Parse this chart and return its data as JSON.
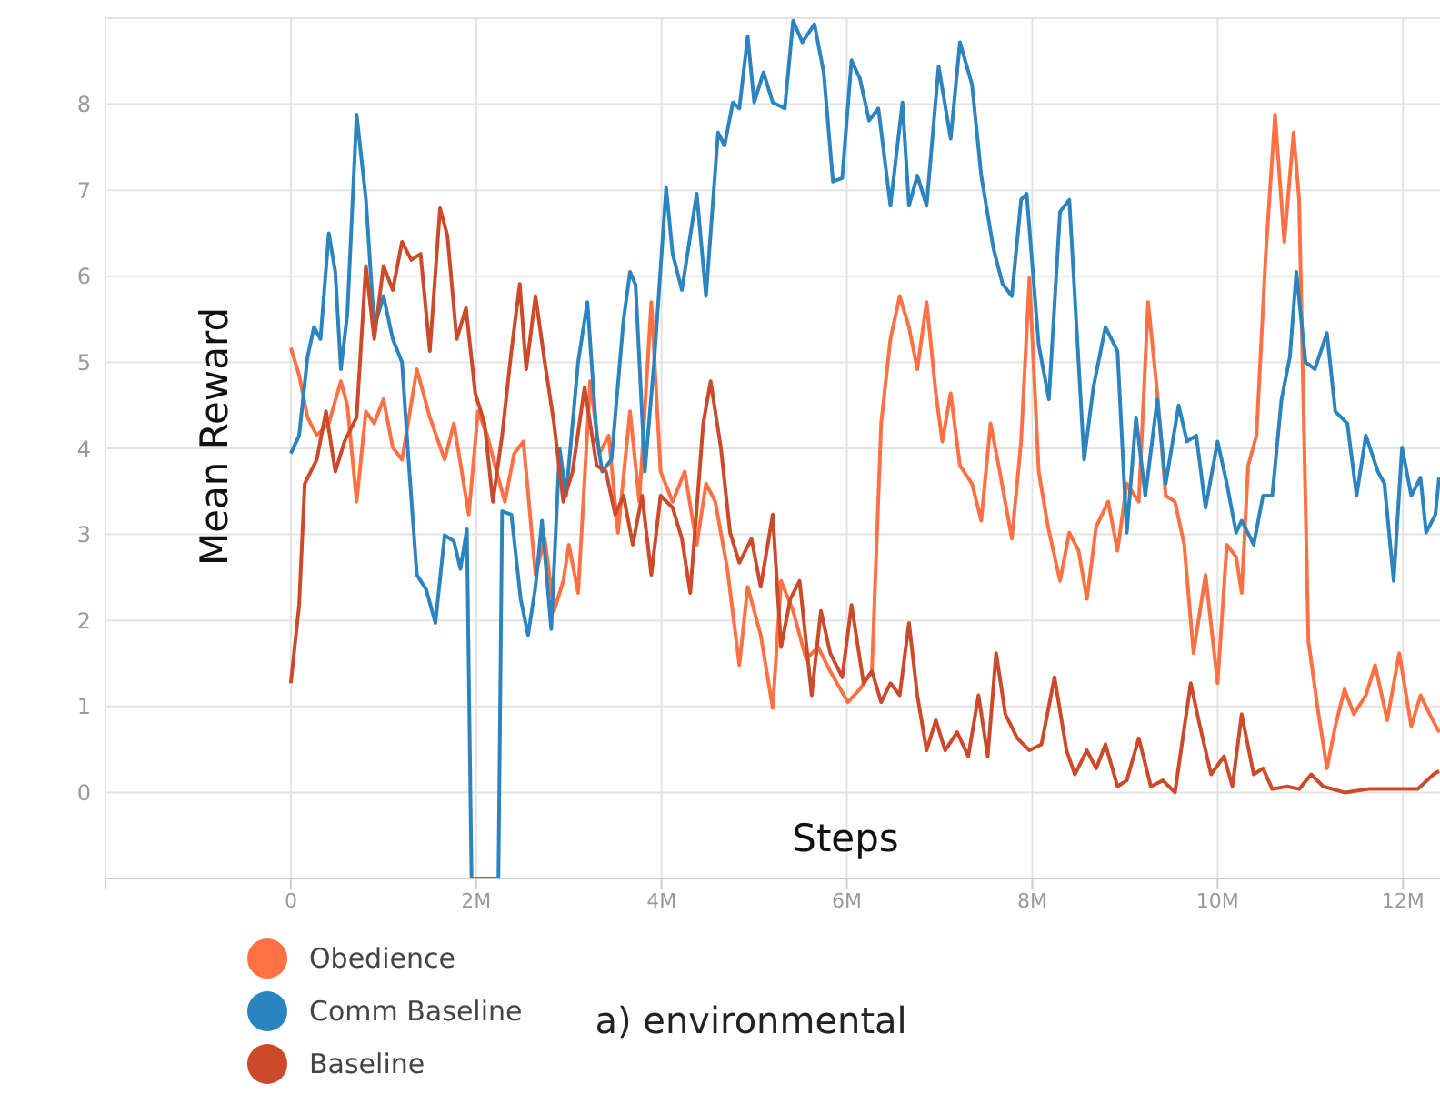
{
  "chart_data": {
    "type": "line",
    "xlabel": "Steps",
    "ylabel": "Mean Reward",
    "annotations": [
      "a) environmental"
    ],
    "xlim": [
      -2000000,
      12400000
    ],
    "ylim": [
      -1,
      9
    ],
    "xticks": [
      {
        "value": -2000000,
        "label": null
      },
      {
        "value": 0,
        "label": "0"
      },
      {
        "value": 2000000,
        "label": "2M"
      },
      {
        "value": 4000000,
        "label": "4M"
      },
      {
        "value": 6000000,
        "label": "6M"
      },
      {
        "value": 8000000,
        "label": "8M"
      },
      {
        "value": 10000000,
        "label": "10M"
      },
      {
        "value": 12000000,
        "label": "12M"
      }
    ],
    "yticks": [
      {
        "value": -1,
        "label": null
      },
      0,
      1,
      2,
      3,
      4,
      5,
      6,
      7,
      8,
      {
        "value": 9,
        "label": null
      }
    ],
    "grid": true,
    "legend": "bottom",
    "marker": "none",
    "line_style": "solid",
    "series": [
      {
        "name": "Obedience",
        "color": "#ff7043",
        "x": [
          0,
          90000,
          180000,
          280000,
          410000,
          540000,
          610000,
          710000,
          810000,
          900000,
          1000000,
          1100000,
          1200000,
          1360000,
          1500000,
          1660000,
          1760000,
          1920000,
          2020000,
          2120000,
          2220000,
          2310000,
          2410000,
          2510000,
          2640000,
          2740000,
          2840000,
          2940000,
          3000000,
          3100000,
          3230000,
          3330000,
          3430000,
          3530000,
          3660000,
          3760000,
          3890000,
          3990000,
          4120000,
          4250000,
          4380000,
          4480000,
          4580000,
          4710000,
          4840000,
          4930000,
          5070000,
          5200000,
          5290000,
          5420000,
          5560000,
          5690000,
          5820000,
          6010000,
          6140000,
          6270000,
          6370000,
          6470000,
          6570000,
          6670000,
          6760000,
          6860000,
          6960000,
          7030000,
          7120000,
          7220000,
          7350000,
          7450000,
          7550000,
          7650000,
          7780000,
          7880000,
          7970000,
          8070000,
          8170000,
          8300000,
          8400000,
          8500000,
          8590000,
          8690000,
          8820000,
          8920000,
          9020000,
          9150000,
          9250000,
          9350000,
          9440000,
          9540000,
          9640000,
          9740000,
          9870000,
          10000000,
          10100000,
          10200000,
          10260000,
          10330000,
          10420000,
          10520000,
          10620000,
          10720000,
          10820000,
          10880000,
          10980000,
          11080000,
          11180000,
          11270000,
          11370000,
          11470000,
          11600000,
          11700000,
          11830000,
          11960000,
          12090000,
          12190000,
          12290000,
          12390000
        ],
        "values": [
          5.17,
          4.85,
          4.36,
          4.15,
          4.29,
          4.78,
          4.5,
          3.38,
          4.43,
          4.29,
          4.57,
          4.01,
          3.87,
          4.92,
          4.36,
          3.87,
          4.29,
          3.23,
          4.43,
          4.15,
          3.73,
          3.38,
          3.94,
          4.08,
          2.53,
          2.95,
          2.11,
          2.46,
          2.88,
          2.32,
          4.78,
          3.94,
          4.15,
          3.02,
          4.43,
          3.38,
          5.7,
          3.73,
          3.38,
          3.73,
          2.88,
          3.59,
          3.38,
          2.6,
          1.48,
          2.39,
          1.83,
          0.98,
          2.46,
          2.11,
          1.55,
          1.69,
          1.41,
          1.05,
          1.2,
          1.41,
          4.29,
          5.27,
          5.77,
          5.41,
          4.92,
          5.7,
          4.64,
          4.08,
          4.64,
          3.8,
          3.59,
          3.16,
          4.29,
          3.73,
          2.95,
          4.08,
          5.98,
          3.73,
          3.09,
          2.46,
          3.02,
          2.81,
          2.25,
          3.09,
          3.38,
          2.81,
          3.59,
          3.38,
          5.7,
          4.64,
          3.45,
          3.38,
          2.88,
          1.62,
          2.53,
          1.27,
          2.88,
          2.74,
          2.32,
          3.8,
          4.15,
          6.26,
          7.88,
          6.4,
          7.67,
          6.89,
          1.76,
          0.98,
          0.28,
          0.77,
          1.2,
          0.91,
          1.13,
          1.48,
          0.84,
          1.62,
          0.77,
          1.13,
          0.91,
          0.7
        ]
      },
      {
        "name": "Comm Baseline",
        "color": "#2b84c0",
        "x": [
          0,
          90000,
          180000,
          250000,
          320000,
          410000,
          480000,
          540000,
          610000,
          710000,
          810000,
          900000,
          1000000,
          1100000,
          1200000,
          1270000,
          1360000,
          1460000,
          1560000,
          1660000,
          1760000,
          1830000,
          1900000,
          1950000,
          2240000,
          2280000,
          2380000,
          2480000,
          2560000,
          2640000,
          2710000,
          2810000,
          2900000,
          2970000,
          3100000,
          3200000,
          3300000,
          3360000,
          3460000,
          3590000,
          3660000,
          3720000,
          3820000,
          3920000,
          4050000,
          4120000,
          4220000,
          4380000,
          4480000,
          4610000,
          4680000,
          4770000,
          4840000,
          4930000,
          5000000,
          5100000,
          5200000,
          5330000,
          5420000,
          5520000,
          5650000,
          5750000,
          5850000,
          5950000,
          6050000,
          6140000,
          6240000,
          6340000,
          6470000,
          6600000,
          6670000,
          6760000,
          6860000,
          6990000,
          7120000,
          7220000,
          7350000,
          7450000,
          7580000,
          7680000,
          7780000,
          7880000,
          7940000,
          8070000,
          8180000,
          8300000,
          8400000,
          8560000,
          8660000,
          8790000,
          8920000,
          9020000,
          9120000,
          9220000,
          9350000,
          9440000,
          9580000,
          9670000,
          9770000,
          9870000,
          10000000,
          10100000,
          10200000,
          10260000,
          10390000,
          10490000,
          10590000,
          10690000,
          10780000,
          10850000,
          10950000,
          11050000,
          11180000,
          11270000,
          11400000,
          11500000,
          11600000,
          11730000,
          11800000,
          11900000,
          11990000,
          12090000,
          12190000,
          12250000,
          12350000,
          12390000
        ],
        "values": [
          3.94,
          4.15,
          5.06,
          5.41,
          5.27,
          6.5,
          6.05,
          4.92,
          5.56,
          7.88,
          6.9,
          5.41,
          5.77,
          5.27,
          5.0,
          3.87,
          2.53,
          2.36,
          1.97,
          2.99,
          2.92,
          2.6,
          3.06,
          -1,
          -1,
          3.27,
          3.23,
          2.25,
          1.83,
          2.39,
          3.16,
          1.9,
          4.0,
          3.45,
          5.0,
          5.7,
          4.15,
          3.73,
          3.87,
          5.49,
          6.05,
          5.9,
          3.73,
          5.0,
          7.03,
          6.26,
          5.84,
          6.96,
          5.77,
          7.67,
          7.52,
          8.02,
          7.95,
          8.79,
          8.02,
          8.37,
          8.02,
          7.95,
          8.97,
          8.72,
          8.93,
          8.37,
          7.1,
          7.14,
          8.51,
          8.3,
          7.81,
          7.95,
          6.82,
          8.02,
          6.82,
          7.17,
          6.82,
          8.44,
          7.6,
          8.72,
          8.23,
          7.17,
          6.33,
          5.91,
          5.77,
          6.89,
          6.96,
          5.2,
          4.57,
          6.75,
          6.89,
          3.87,
          4.71,
          5.41,
          5.13,
          3.02,
          4.36,
          3.45,
          4.57,
          3.59,
          4.5,
          4.08,
          4.15,
          3.31,
          4.08,
          3.59,
          3.02,
          3.16,
          2.88,
          3.45,
          3.45,
          4.57,
          5.06,
          6.05,
          5.0,
          4.92,
          5.34,
          4.43,
          4.29,
          3.45,
          4.15,
          3.73,
          3.59,
          2.46,
          4.01,
          3.45,
          3.66,
          3.02,
          3.23,
          3.66
        ]
      },
      {
        "name": "Baseline",
        "color": "#cc4a2a",
        "x": [
          0,
          90000,
          150000,
          280000,
          380000,
          480000,
          580000,
          710000,
          810000,
          900000,
          1000000,
          1100000,
          1200000,
          1300000,
          1400000,
          1500000,
          1610000,
          1690000,
          1790000,
          1890000,
          1990000,
          2090000,
          2180000,
          2280000,
          2380000,
          2470000,
          2540000,
          2640000,
          2740000,
          2840000,
          2940000,
          3040000,
          3170000,
          3300000,
          3400000,
          3500000,
          3590000,
          3690000,
          3790000,
          3890000,
          3990000,
          4120000,
          4220000,
          4310000,
          4450000,
          4530000,
          4640000,
          4740000,
          4840000,
          4970000,
          5070000,
          5200000,
          5290000,
          5390000,
          5490000,
          5620000,
          5720000,
          5820000,
          5950000,
          6050000,
          6180000,
          6270000,
          6370000,
          6470000,
          6570000,
          6670000,
          6760000,
          6860000,
          6960000,
          7060000,
          7190000,
          7310000,
          7420000,
          7520000,
          7610000,
          7710000,
          7840000,
          7970000,
          8100000,
          8240000,
          8370000,
          8460000,
          8590000,
          8690000,
          8790000,
          8920000,
          9020000,
          9150000,
          9280000,
          9410000,
          9540000,
          9710000,
          9810000,
          9930000,
          10070000,
          10160000,
          10260000,
          10390000,
          10490000,
          10590000,
          10750000,
          10880000,
          11010000,
          11140000,
          11370000,
          11630000,
          11900000,
          12160000,
          12330000,
          12390000
        ],
        "values": [
          1.27,
          2.18,
          3.59,
          3.87,
          4.43,
          3.73,
          4.08,
          4.36,
          6.12,
          5.27,
          6.12,
          5.84,
          6.4,
          6.19,
          6.26,
          5.13,
          6.79,
          6.47,
          5.27,
          5.63,
          4.64,
          4.29,
          3.38,
          4.15,
          5.13,
          5.91,
          4.92,
          5.77,
          5.0,
          4.29,
          3.38,
          3.73,
          4.71,
          3.8,
          3.73,
          3.23,
          3.45,
          2.88,
          3.45,
          2.53,
          3.45,
          3.31,
          2.95,
          2.32,
          4.29,
          4.78,
          4.01,
          3.02,
          2.67,
          2.95,
          2.39,
          3.23,
          1.69,
          2.25,
          2.46,
          1.13,
          2.11,
          1.62,
          1.34,
          2.18,
          1.27,
          1.41,
          1.05,
          1.27,
          1.13,
          1.97,
          1.13,
          0.49,
          0.84,
          0.49,
          0.7,
          0.42,
          1.13,
          0.42,
          1.62,
          0.91,
          0.63,
          0.49,
          0.56,
          1.34,
          0.49,
          0.21,
          0.49,
          0.28,
          0.56,
          0.07,
          0.14,
          0.63,
          0.07,
          0.14,
          0,
          1.27,
          0.77,
          0.21,
          0.42,
          0.07,
          0.91,
          0.21,
          0.28,
          0.04,
          0.07,
          0.04,
          0.21,
          0.07,
          0,
          0.04,
          0.04,
          0.04,
          0.21,
          0.25
        ]
      }
    ]
  }
}
